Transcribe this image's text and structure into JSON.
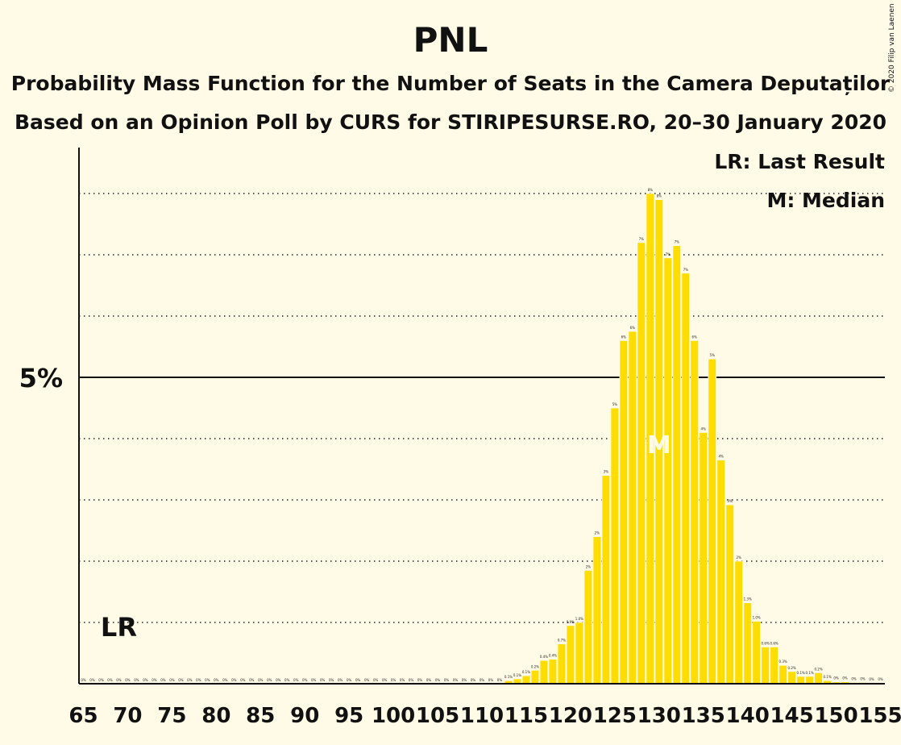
{
  "title": "PNL",
  "subtitle1": "Probability Mass Function for the Number of Seats in the Camera Deputaților",
  "subtitle2": "Based on an Opinion Poll by CURS for STIRIPESURSE.RO, 20–30 January 2020",
  "copyright": "© 2020 Filip van Laenen",
  "legend": {
    "last_result": "LR: Last Result",
    "median": "M: Median"
  },
  "markers": {
    "last_result_label": "LR",
    "last_result_seats": 69,
    "median_label": "M",
    "median_seats": 130
  },
  "colors": {
    "bar": "#ffdd00",
    "background": "#fffbe6",
    "text": "#111111"
  },
  "chart_data": {
    "type": "bar",
    "xlabel": "",
    "ylabel": "",
    "xlim": [
      65,
      155
    ],
    "ylim": [
      0,
      8.5
    ],
    "x_ticks": [
      65,
      70,
      75,
      80,
      85,
      90,
      95,
      100,
      105,
      110,
      115,
      120,
      125,
      130,
      135,
      140,
      145,
      150,
      155
    ],
    "y_tick_labels": [
      {
        "value": 5,
        "label": "5%"
      }
    ],
    "y_gridlines": [
      1,
      2,
      3,
      4,
      6,
      7,
      8
    ],
    "x": [
      65,
      66,
      67,
      68,
      69,
      70,
      71,
      72,
      73,
      74,
      75,
      76,
      77,
      78,
      79,
      80,
      81,
      82,
      83,
      84,
      85,
      86,
      87,
      88,
      89,
      90,
      91,
      92,
      93,
      94,
      95,
      96,
      97,
      98,
      99,
      100,
      101,
      102,
      103,
      104,
      105,
      106,
      107,
      108,
      109,
      110,
      111,
      112,
      113,
      114,
      115,
      116,
      117,
      118,
      119,
      120,
      121,
      122,
      123,
      124,
      125,
      126,
      127,
      128,
      129,
      130,
      131,
      132,
      133,
      134,
      135,
      136,
      137,
      138,
      139,
      140,
      141,
      142,
      143,
      144,
      145,
      146,
      147,
      148,
      149,
      150,
      151,
      152,
      153,
      154,
      155
    ],
    "values": [
      0,
      0,
      0,
      0,
      0,
      0,
      0,
      0,
      0,
      0,
      0,
      0,
      0,
      0,
      0,
      0,
      0,
      0,
      0,
      0,
      0,
      0,
      0,
      0,
      0,
      0,
      0,
      0,
      0,
      0,
      0,
      0,
      0,
      0,
      0,
      0,
      0,
      0,
      0,
      0,
      0,
      0,
      0,
      0,
      0,
      0,
      0,
      0,
      0.05,
      0.08,
      0.13,
      0.22,
      0.38,
      0.4,
      0.65,
      0.95,
      1.0,
      1.85,
      2.4,
      3.4,
      4.5,
      5.6,
      5.75,
      7.2,
      8.0,
      7.9,
      6.95,
      7.15,
      6.7,
      5.6,
      4.1,
      5.3,
      3.65,
      2.92,
      2.0,
      1.32,
      1.02,
      0.6,
      0.6,
      0.3,
      0.2,
      0.12,
      0.12,
      0.18,
      0.05,
      0.03,
      0.03,
      0.02,
      0.02,
      0.01,
      0.01
    ],
    "data_labels": [
      "0%",
      "0%",
      "0%",
      "0%",
      "0%",
      "0%",
      "0%",
      "0%",
      "0%",
      "0%",
      "0%",
      "0%",
      "0%",
      "0%",
      "0%",
      "0%",
      "0%",
      "0%",
      "0%",
      "0%",
      "0%",
      "0%",
      "0%",
      "0%",
      "0%",
      "0%",
      "0%",
      "0%",
      "0%",
      "0%",
      "0%",
      "0%",
      "0%",
      "0%",
      "0%",
      "0%",
      "0%",
      "0%",
      "0%",
      "0%",
      "0%",
      "0%",
      "0%",
      "0%",
      "0%",
      "0%",
      "0%",
      "0%",
      "0.1%",
      "0.1%",
      "0.1%",
      "0.2%",
      "0.4%",
      "0.4%",
      "0.7%",
      "0.9%",
      "1.0%",
      "2%",
      "2%",
      "3%",
      "5%",
      "6%",
      "6%",
      "7%",
      "8%",
      "8%",
      "7%",
      "7%",
      "7%",
      "6%",
      "4%",
      "5%",
      "4%",
      "3%",
      "2%",
      "1.3%",
      "1.0%",
      "0.6%",
      "0.6%",
      "0.3%",
      "0.2%",
      "0.1%",
      "0.1%",
      "0.2%",
      "0.1%",
      "0%",
      "0%",
      "0%",
      "0%",
      "0%",
      "0%"
    ]
  }
}
